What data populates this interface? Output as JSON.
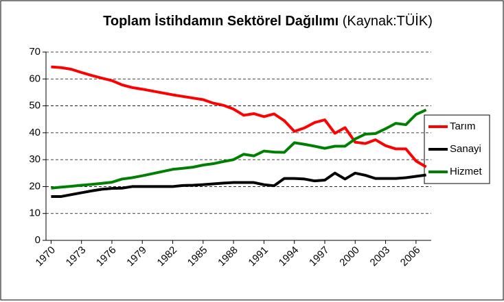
{
  "chart_data": {
    "type": "line",
    "title": "Toplam İstihdamın Sektörel Dağılımı",
    "source": "(Kaynak:TÜİK)",
    "x": [
      1970,
      1971,
      1972,
      1973,
      1974,
      1975,
      1976,
      1977,
      1978,
      1979,
      1980,
      1981,
      1982,
      1983,
      1984,
      1985,
      1986,
      1987,
      1988,
      1989,
      1990,
      1991,
      1992,
      1993,
      1994,
      1995,
      1996,
      1997,
      1998,
      1999,
      2000,
      2001,
      2002,
      2003,
      2004,
      2005,
      2006,
      2007
    ],
    "xlim": [
      1969.5,
      2007.5
    ],
    "xticks": [
      1970,
      1973,
      1976,
      1979,
      1982,
      1985,
      1988,
      1991,
      1994,
      1997,
      2000,
      2003,
      2006
    ],
    "ylim": [
      0,
      70
    ],
    "yticks": [
      0,
      10,
      20,
      30,
      40,
      50,
      60,
      70
    ],
    "grid": true,
    "legend": "right",
    "series": [
      {
        "name": "Tarım",
        "color": "#ff0000",
        "values": [
          64.5,
          64.2,
          63.6,
          62.4,
          61.3,
          60.3,
          59.4,
          57.8,
          56.8,
          56.2,
          55.5,
          54.8,
          54.1,
          53.5,
          52.9,
          52.3,
          51,
          50.2,
          48.8,
          46.5,
          47.1,
          46,
          47,
          44.5,
          40.5,
          41.8,
          43.8,
          44.8,
          39.8,
          41.9,
          36.5,
          36,
          37.4,
          35.2,
          34,
          34,
          29.5,
          27.3
        ]
      },
      {
        "name": "Sanayi",
        "color": "#000000",
        "values": [
          16.3,
          16.3,
          17,
          17.7,
          18.4,
          19,
          19.3,
          19.4,
          20,
          20,
          20,
          20,
          20,
          20.4,
          20.5,
          20.7,
          21,
          21.3,
          21.5,
          21.5,
          21.5,
          20.7,
          20.3,
          23,
          23,
          22.8,
          22.1,
          22.4,
          25,
          22.8,
          25,
          24.2,
          23,
          23,
          23,
          23.3,
          23.8,
          24.3
        ]
      },
      {
        "name": "Hizmet",
        "color": "#008000",
        "values": [
          19.4,
          19.8,
          20.1,
          20.5,
          20.8,
          21.2,
          21.6,
          22.8,
          23.3,
          24,
          24.8,
          25.6,
          26.4,
          26.8,
          27.2,
          28,
          28.5,
          29.3,
          30,
          32,
          31.4,
          33.2,
          32.8,
          32.7,
          36.3,
          35.7,
          35,
          34.2,
          35,
          35,
          37.7,
          39.5,
          39.7,
          41.5,
          43.5,
          43,
          46.8,
          48.5
        ]
      }
    ]
  }
}
